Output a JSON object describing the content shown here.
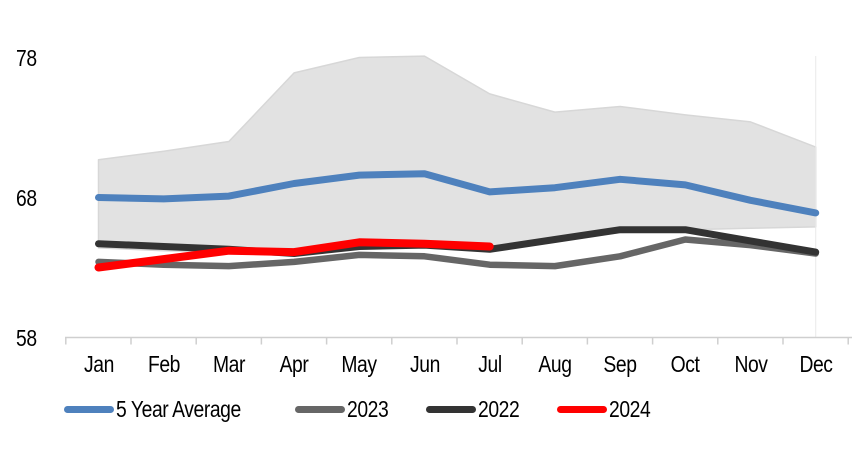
{
  "chart_data": {
    "type": "line",
    "title": "",
    "xlabel": "",
    "ylabel": "",
    "categories": [
      "Jan",
      "Feb",
      "Mar",
      "Apr",
      "May",
      "Jun",
      "Jul",
      "Aug",
      "Sep",
      "Oct",
      "Nov",
      "Dec"
    ],
    "yticks": [
      78,
      68,
      58
    ],
    "ylim": [
      58,
      79
    ],
    "grid": "off",
    "legend_position": "bottom",
    "axis_color": "#CFCFCF",
    "band": {
      "name": "5-year range",
      "fill_color": "#E2E2E2",
      "border_color": "#D7D7D7",
      "top": [
        70.7,
        71.3,
        72.0,
        76.9,
        78.0,
        78.1,
        75.4,
        74.1,
        74.5,
        73.9,
        73.4,
        71.6
      ],
      "bottom": [
        64.4,
        64.2,
        64.1,
        64.0,
        64.6,
        64.6,
        64.2,
        64.9,
        65.5,
        65.7,
        65.8,
        65.9
      ]
    },
    "series": [
      {
        "name": "5 Year Average",
        "color": "#4E81BD",
        "width": 7,
        "values": [
          68.0,
          67.9,
          68.1,
          69.0,
          69.6,
          69.7,
          68.4,
          68.7,
          69.3,
          68.9,
          67.8,
          66.9
        ]
      },
      {
        "name": "2023",
        "color": "#666666",
        "width": 6.5,
        "values": [
          63.4,
          63.2,
          63.1,
          63.4,
          63.9,
          63.8,
          63.2,
          63.1,
          63.8,
          65.0,
          64.6,
          64.0
        ]
      },
      {
        "name": "2022",
        "color": "#333333",
        "width": 7,
        "values": [
          64.7,
          64.5,
          64.3,
          64.0,
          64.5,
          64.6,
          64.3,
          65.0,
          65.7,
          65.7,
          64.9,
          64.1
        ]
      },
      {
        "name": "2024",
        "color": "#FF0000",
        "width": 8,
        "values": [
          63.0,
          63.6,
          64.2,
          64.1,
          64.8,
          64.7,
          64.5,
          null,
          null,
          null,
          null,
          null
        ]
      }
    ]
  }
}
